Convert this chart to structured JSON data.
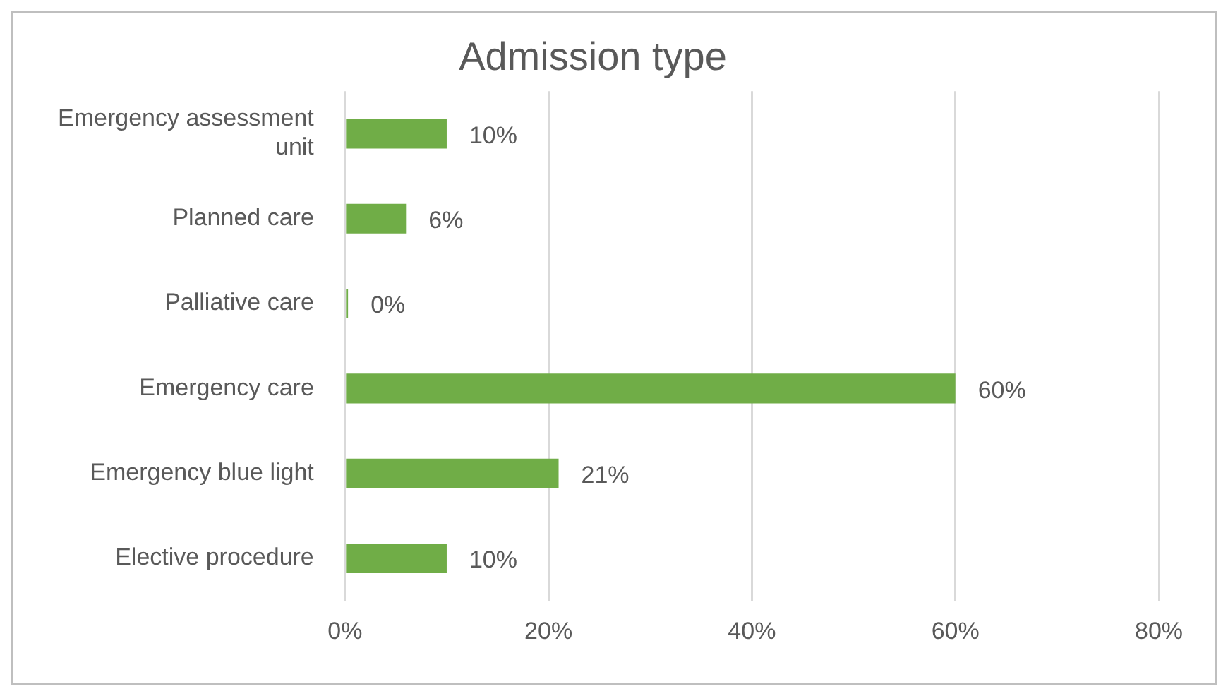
{
  "chart_data": {
    "type": "bar",
    "orientation": "horizontal",
    "title": "Admission type",
    "categories": [
      "Emergency assessment unit",
      "Planned care",
      "Palliative care",
      "Emergency care",
      "Emergency blue light",
      "Elective procedure"
    ],
    "values": [
      10,
      6,
      0.3,
      60,
      21,
      10
    ],
    "value_labels": [
      "10%",
      "6%",
      "0%",
      "60%",
      "21%",
      "10%"
    ],
    "color": "#70ad47",
    "xlim": [
      0,
      80
    ],
    "xticks": [
      {
        "value": 0,
        "label": "0%"
      },
      {
        "value": 20,
        "label": "20%"
      },
      {
        "value": 40,
        "label": "40%"
      },
      {
        "value": 60,
        "label": "60%"
      },
      {
        "value": 80,
        "label": "80%"
      }
    ],
    "grid": "x",
    "legend": false
  }
}
